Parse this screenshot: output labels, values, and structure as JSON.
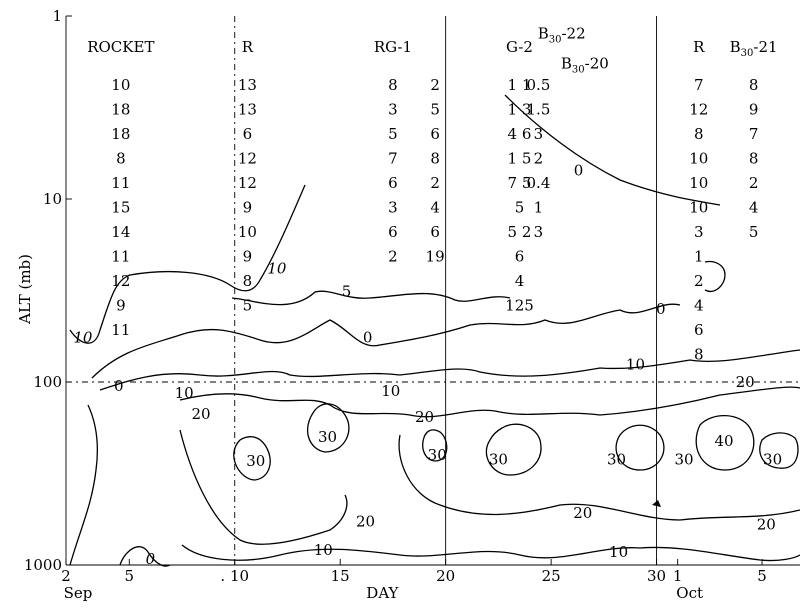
{
  "chart_data": {
    "type": "contour",
    "title": "",
    "ylabel": "ALT (mb)",
    "xlabel": "DAY",
    "y_scale": "log",
    "y_ticks": [
      {
        "value": 1,
        "label": "1"
      },
      {
        "value": 10,
        "label": "10"
      },
      {
        "value": 100,
        "label": "100"
      },
      {
        "value": 1000,
        "label": "1000"
      }
    ],
    "x_ticks": [
      {
        "day": 2,
        "label": "2"
      },
      {
        "day": 5,
        "label": "5"
      },
      {
        "day": 10,
        "label": ". 10"
      },
      {
        "day": 15,
        "label": "15"
      },
      {
        "day": 20,
        "label": "20"
      },
      {
        "day": 25,
        "label": "25"
      },
      {
        "day": 30,
        "label": "30"
      },
      {
        "day": 31,
        "label": "1"
      },
      {
        "day": 35,
        "label": "5"
      }
    ],
    "month_labels": [
      {
        "day": 2,
        "label": "Sep"
      },
      {
        "day": 31,
        "label": "Oct"
      }
    ],
    "x_range_days": [
      2,
      36.8
    ],
    "y_range_mb": [
      1,
      1000
    ],
    "period_dividers_day": [
      10,
      20,
      30
    ],
    "reference_pressure_mb": 100,
    "data_columns": [
      {
        "header": "ROCKET",
        "day": 4.6,
        "values": [
          "10",
          "18",
          "18",
          "8",
          "11",
          "15",
          "14",
          "11",
          "12",
          "9",
          "11"
        ]
      },
      {
        "header": "R",
        "day": 10.6,
        "values": [
          "13",
          "13",
          "6",
          "12",
          "12",
          "9",
          "10",
          "9",
          "8",
          "5"
        ]
      },
      {
        "header": "RG-1",
        "day": 17.5,
        "values": [
          "8",
          "3",
          "5",
          "7",
          "6",
          "3",
          "6",
          "2"
        ]
      },
      {
        "header": "",
        "day": 19.5,
        "values": [
          "2",
          "5",
          "6",
          "8",
          "2",
          "4",
          "6",
          "19"
        ]
      },
      {
        "header": "G-2",
        "day": 23.5,
        "values": [
          "1 1",
          "1 3",
          "4 6",
          "1 5",
          "7 5",
          "5",
          "5 2",
          "6",
          "4",
          "125"
        ]
      },
      {
        "header": "",
        "day": 24.4,
        "values": [
          "0.5",
          "1.5",
          "3",
          "2",
          "0.4",
          "1",
          "3"
        ]
      },
      {
        "header": "R",
        "day": 32.0,
        "values": [
          "7",
          "12",
          "8",
          "10",
          "10",
          "10",
          "3",
          "1",
          "2",
          "4",
          "6",
          "8"
        ]
      },
      {
        "header": "B30-21",
        "day": 34.6,
        "values": [
          "8",
          "9",
          "7",
          "8",
          "2",
          "4",
          "5"
        ]
      }
    ],
    "extra_annotations": [
      {
        "text": "B30-22",
        "day": 25.5,
        "p_mb": 1.1
      },
      {
        "text": "B30-20",
        "day": 26.6,
        "p_mb": 1.6
      }
    ],
    "contour_labels": [
      {
        "text": "10",
        "day": 2.8,
        "p_mb": 57,
        "italic": true
      },
      {
        "text": "10",
        "day": 12.0,
        "p_mb": 24,
        "italic": true
      },
      {
        "text": "5",
        "day": 15.3,
        "p_mb": 32,
        "italic": false
      },
      {
        "text": "0",
        "day": 16.3,
        "p_mb": 57,
        "italic": false
      },
      {
        "text": "0",
        "day": 26.3,
        "p_mb": 7.0,
        "italic": false
      },
      {
        "text": "0",
        "day": 4.5,
        "p_mb": 105,
        "italic": false
      },
      {
        "text": "10",
        "day": 7.6,
        "p_mb": 115,
        "italic": false
      },
      {
        "text": "20",
        "day": 8.4,
        "p_mb": 150,
        "italic": false
      },
      {
        "text": "30",
        "day": 11.0,
        "p_mb": 270,
        "italic": false
      },
      {
        "text": "30",
        "day": 14.4,
        "p_mb": 200,
        "italic": false
      },
      {
        "text": "10",
        "day": 17.4,
        "p_mb": 112,
        "italic": false
      },
      {
        "text": "20",
        "day": 19.0,
        "p_mb": 155,
        "italic": false
      },
      {
        "text": "30",
        "day": 19.6,
        "p_mb": 250,
        "italic": false
      },
      {
        "text": "30",
        "day": 22.5,
        "p_mb": 265,
        "italic": false
      },
      {
        "text": "30",
        "day": 28.1,
        "p_mb": 265,
        "italic": false
      },
      {
        "text": "30",
        "day": 31.3,
        "p_mb": 265,
        "italic": false
      },
      {
        "text": "40",
        "day": 33.2,
        "p_mb": 210,
        "italic": false
      },
      {
        "text": "30",
        "day": 35.5,
        "p_mb": 265,
        "italic": false
      },
      {
        "text": "20",
        "day": 16.2,
        "p_mb": 580,
        "italic": false
      },
      {
        "text": "20",
        "day": 26.5,
        "p_mb": 520,
        "italic": false
      },
      {
        "text": "20",
        "day": 35.2,
        "p_mb": 600,
        "italic": false
      },
      {
        "text": "10",
        "day": 14.2,
        "p_mb": 830,
        "italic": false
      },
      {
        "text": "10",
        "day": 28.2,
        "p_mb": 850,
        "italic": false
      },
      {
        "text": "20",
        "day": 34.2,
        "p_mb": 100,
        "italic": false
      },
      {
        "text": "10",
        "day": 29.0,
        "p_mb": 80,
        "italic": false
      },
      {
        "text": "0",
        "day": 30.2,
        "p_mb": 40,
        "italic": false
      },
      {
        "text": "0",
        "day": 6.0,
        "p_mb": 930,
        "italic": true
      }
    ]
  }
}
